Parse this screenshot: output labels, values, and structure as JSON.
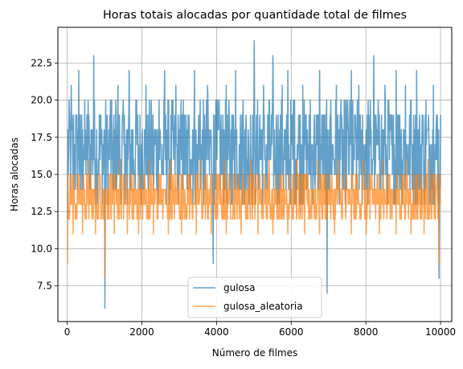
{
  "chart_data": {
    "type": "line",
    "title": "Horas totais alocadas por quantidade total de filmes",
    "xlabel": "Número de filmes",
    "ylabel": "Horas alocadas",
    "xlim": [
      -250,
      10300
    ],
    "ylim": [
      5.1,
      24.9
    ],
    "xticks": [
      0,
      2000,
      4000,
      6000,
      8000,
      10000
    ],
    "xtick_labels": [
      "0",
      "2000",
      "4000",
      "6000",
      "8000",
      "10000"
    ],
    "yticks": [
      7.5,
      10.0,
      12.5,
      15.0,
      17.5,
      20.0,
      22.5
    ],
    "ytick_labels": [
      "7.5",
      "10.0",
      "12.5",
      "15.0",
      "17.5",
      "20.0",
      "22.5"
    ],
    "grid": true,
    "legend_position": "lower-center",
    "series": [
      {
        "name": "gulosa",
        "color": "#1f77b4",
        "sample_step": 50,
        "x_start": 10,
        "x_end": 10000,
        "y_min": 6,
        "y_max": 24,
        "y_typical_range": [
          13,
          20
        ],
        "y_values": [
          12,
          19,
          21,
          15,
          17,
          19,
          22,
          14,
          18,
          16,
          17,
          20,
          15,
          18,
          23,
          16,
          14,
          19,
          17,
          15,
          6,
          18,
          16,
          20,
          17,
          14,
          18,
          21,
          16,
          15,
          19,
          17,
          13,
          22,
          16,
          18,
          15,
          20,
          17,
          14,
          18,
          16,
          21,
          15,
          17,
          19,
          14,
          18,
          16,
          20,
          17,
          15,
          22,
          18,
          16,
          14,
          19,
          17,
          21,
          15,
          18,
          16,
          20,
          17,
          14,
          19,
          16,
          18,
          22,
          15,
          17,
          20,
          16,
          14,
          18,
          21,
          15,
          17,
          9,
          19,
          16,
          20,
          18,
          15,
          17,
          21,
          16,
          14,
          19,
          18,
          22,
          15,
          17,
          16,
          20,
          18,
          14,
          17,
          19,
          16,
          24,
          17,
          15,
          19,
          18,
          21,
          16,
          14,
          20,
          17,
          23,
          16,
          18,
          15,
          19,
          21,
          17,
          14,
          22,
          16,
          18,
          20,
          15,
          17,
          19,
          16,
          21,
          18,
          14,
          17,
          20,
          16,
          18,
          15,
          19,
          22,
          17,
          16,
          14,
          7,
          18,
          20,
          17,
          15,
          21,
          16,
          19,
          18,
          14,
          17,
          20,
          16,
          22,
          15,
          18,
          17,
          21,
          16,
          19,
          14,
          18,
          20,
          17,
          15,
          23,
          16,
          18,
          19,
          17,
          14,
          21,
          16,
          20,
          18,
          15,
          17,
          22,
          16,
          19,
          14,
          18,
          21,
          17,
          15,
          20,
          16,
          18,
          22,
          17,
          14,
          19,
          16,
          20,
          18,
          15,
          17,
          21,
          16,
          19,
          8,
          18,
          20,
          17
        ]
      },
      {
        "name": "gulosa_aleatoria",
        "color": "#ff7f0e",
        "sample_step": 50,
        "x_start": 10,
        "x_end": 10000,
        "y_min": 8,
        "y_max": 17,
        "y_typical_range": [
          12,
          15
        ],
        "y_values": [
          9,
          12,
          14,
          11,
          13,
          12,
          15,
          13,
          11,
          14,
          12,
          16,
          13,
          12,
          14,
          11,
          13,
          15,
          12,
          14,
          8,
          13,
          12,
          15,
          14,
          11,
          13,
          12,
          16,
          14,
          12,
          13,
          11,
          14,
          15,
          12,
          13,
          14,
          11,
          12,
          15,
          13,
          14,
          12,
          16,
          13,
          11,
          14,
          12,
          13,
          15,
          12,
          14,
          13,
          11,
          16,
          12,
          14,
          13,
          15,
          12,
          11,
          14,
          13,
          12,
          15,
          14,
          12,
          13,
          11,
          14,
          16,
          12,
          13,
          15,
          12,
          14,
          11,
          13,
          12,
          15,
          14,
          13,
          12,
          16,
          11,
          14,
          13,
          12,
          15,
          13,
          14,
          12,
          11,
          15,
          13,
          12,
          14,
          16,
          12,
          13,
          14,
          11,
          15,
          12,
          13,
          14,
          12,
          16,
          13,
          11,
          14,
          13,
          12,
          15,
          14,
          12,
          13,
          11,
          15,
          13,
          12,
          14,
          16,
          12,
          13,
          14,
          11,
          15,
          13,
          12,
          14,
          13,
          12,
          16,
          11,
          14,
          13,
          12,
          15,
          14,
          12,
          13,
          11,
          14,
          16,
          13,
          12,
          15,
          12,
          14,
          13,
          11,
          14,
          12,
          15,
          13,
          12,
          16,
          14,
          11,
          13,
          12,
          15,
          14,
          12,
          13,
          11,
          14,
          16,
          13,
          12,
          15,
          12,
          14,
          13,
          11,
          14,
          12,
          15,
          13,
          12,
          16,
          14,
          11,
          13,
          12,
          15,
          14,
          12,
          13,
          11,
          14,
          16,
          13,
          12,
          15,
          12,
          14,
          9,
          13,
          11,
          14,
          12
        ]
      }
    ]
  }
}
